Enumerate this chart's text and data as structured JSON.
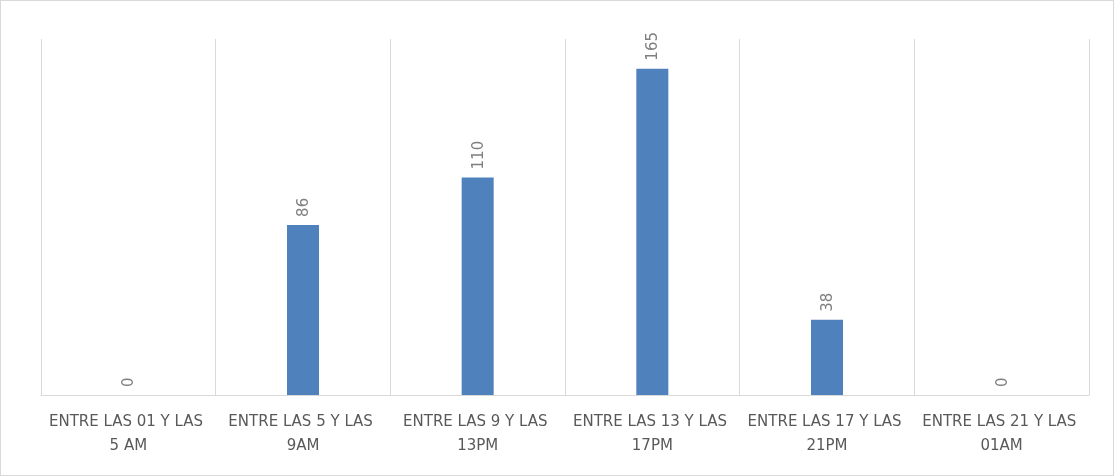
{
  "chart_data": {
    "type": "bar",
    "categories": [
      "ENTRE LAS 01 Y LAS 5 AM",
      "ENTRE LAS 5 Y LAS 9AM",
      "ENTRE LAS 9 Y LAS 13PM",
      "ENTRE LAS 13 Y LAS 17PM",
      "ENTRE LAS 17 Y LAS 21PM",
      "ENTRE LAS 21 Y LAS 01AM"
    ],
    "values": [
      0,
      86,
      110,
      165,
      38,
      0
    ],
    "color": "#4f81bd",
    "data_labels": true,
    "grid": "x"
  }
}
